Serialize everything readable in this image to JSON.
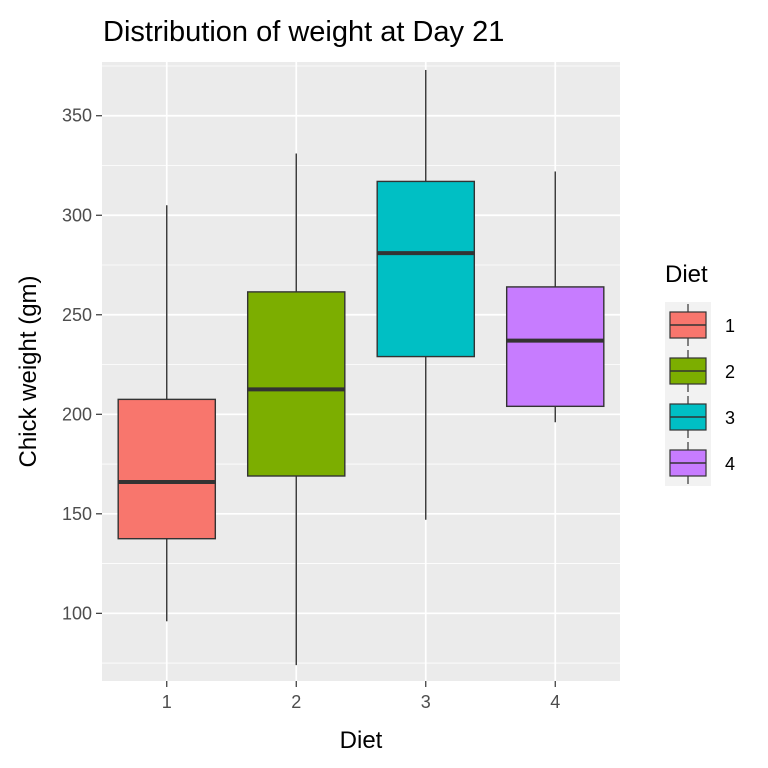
{
  "chart_data": {
    "type": "boxplot",
    "title": "Distribution of weight at Day 21",
    "xlabel": "Diet",
    "ylabel": "Chick weight (gm)",
    "categories": [
      "1",
      "2",
      "3",
      "4"
    ],
    "ylim": [
      66,
      377
    ],
    "y_ticks": [
      100,
      150,
      200,
      250,
      300,
      350
    ],
    "grid": true,
    "legend": {
      "title": "Diet",
      "placement": "right",
      "entries": [
        "1",
        "2",
        "3",
        "4"
      ]
    },
    "series": [
      {
        "category": "1",
        "min": 96,
        "q1": 137.5,
        "median": 166,
        "q3": 207.5,
        "max": 305,
        "color": "#F8766D"
      },
      {
        "category": "2",
        "min": 74,
        "q1": 169,
        "median": 212.5,
        "q3": 261.5,
        "max": 331,
        "color": "#7CAE00"
      },
      {
        "category": "3",
        "min": 147,
        "q1": 229,
        "median": 281,
        "q3": 317,
        "max": 373,
        "color": "#00BFC4"
      },
      {
        "category": "4",
        "min": 196,
        "q1": 204,
        "median": 237,
        "q3": 264,
        "max": 322,
        "color": "#C77CFF"
      }
    ]
  }
}
